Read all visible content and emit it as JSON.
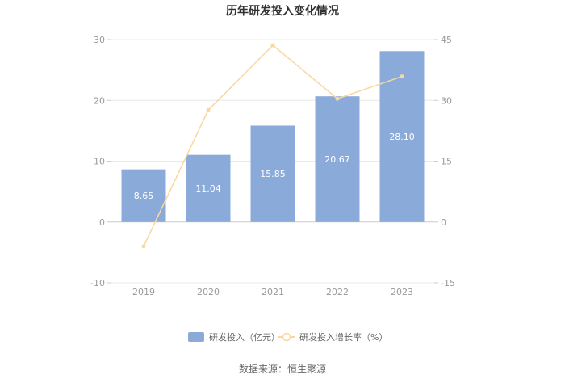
{
  "chart_data": {
    "type": "bar",
    "title": "历年研发投入变化情况",
    "categories": [
      "2019",
      "2020",
      "2021",
      "2022",
      "2023"
    ],
    "series": [
      {
        "name": "研发投入（亿元）",
        "type": "bar",
        "axis": "left",
        "color": "#8aabd9",
        "values": [
          8.65,
          11.04,
          15.85,
          20.67,
          28.1
        ],
        "labels": [
          "8.65",
          "11.04",
          "15.85",
          "20.67",
          "28.10"
        ]
      },
      {
        "name": "研发投入增长率（%）",
        "type": "line",
        "axis": "right",
        "color": "#fad7a0",
        "values": [
          -6.0,
          27.6,
          43.6,
          30.4,
          35.9
        ]
      }
    ],
    "y_left": {
      "min": -10,
      "max": 30,
      "ticks": [
        "-10",
        "0",
        "10",
        "20",
        "30"
      ]
    },
    "y_right": {
      "min": -15,
      "max": 45,
      "ticks": [
        "-15",
        "0",
        "15",
        "30",
        "45"
      ]
    },
    "grid": true,
    "legend_position": "bottom"
  },
  "footer": {
    "source": "数据来源：恒生聚源"
  }
}
